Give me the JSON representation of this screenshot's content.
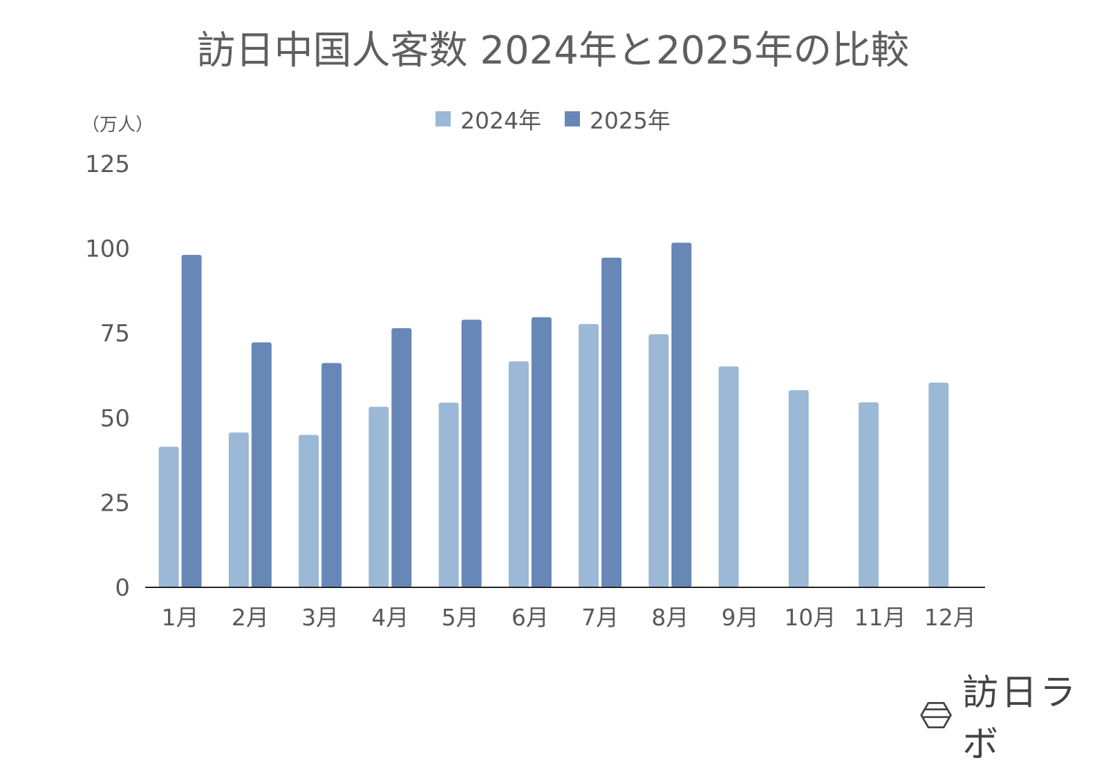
{
  "chart_data": {
    "type": "bar",
    "title": "訪日中国人客数 2024年と2025年の比較",
    "ylabel": "（万人）",
    "xlabel": "",
    "categories": [
      "1月",
      "2月",
      "3月",
      "4月",
      "5月",
      "6月",
      "7月",
      "8月",
      "9月",
      "10月",
      "11月",
      "12月"
    ],
    "series": [
      {
        "name": "2024年",
        "color": "#9cb8d7",
        "values": [
          41.5,
          45.7,
          45.0,
          53.3,
          54.5,
          66.7,
          77.7,
          74.7,
          65.2,
          58.2,
          54.6,
          60.4
        ]
      },
      {
        "name": "2025年",
        "color": "#6787b7",
        "values": [
          98.1,
          72.3,
          66.2,
          76.5,
          79.0,
          79.7,
          97.3,
          101.7,
          null,
          null,
          null,
          null
        ]
      }
    ],
    "ylim": [
      0,
      125
    ],
    "yticks": [
      "0",
      "25",
      "50",
      "75",
      "100",
      "125"
    ],
    "grid": false,
    "legend_position": "top-center"
  },
  "brand": {
    "name": "訪日ラボ"
  }
}
